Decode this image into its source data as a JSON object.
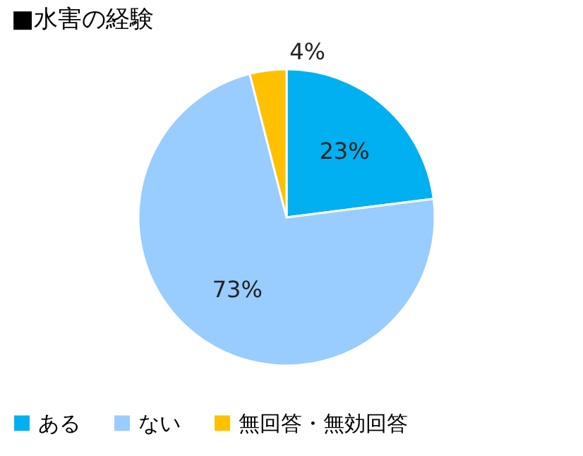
{
  "chart_data": {
    "type": "pie",
    "title": "■水害の経験",
    "categories": [
      "ある",
      "ない",
      "無回答・無効回答"
    ],
    "values": [
      23,
      73,
      4
    ],
    "colors": [
      "#00b0f0",
      "#99ccff",
      "#ffc000"
    ],
    "value_labels": [
      "23%",
      "73%",
      "4%"
    ],
    "legend": "bottom"
  }
}
